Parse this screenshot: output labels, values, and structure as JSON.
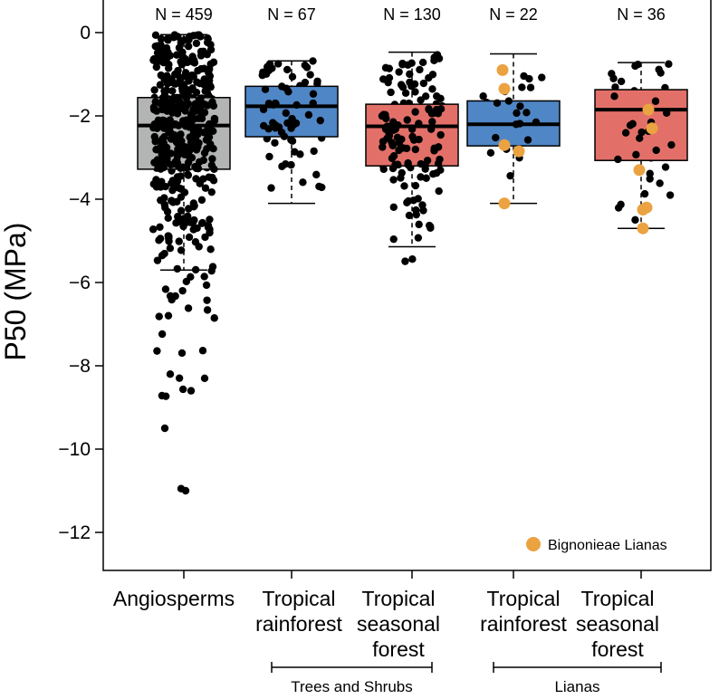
{
  "chart_data": {
    "type": "box",
    "ylabel": "P50 (MPa)",
    "ylim": [
      -12.9,
      0.75
    ],
    "yticks": [
      0,
      -2,
      -4,
      -6,
      -8,
      -10,
      -12
    ],
    "yticklabels": [
      "0",
      "−2",
      "−4",
      "−6",
      "−8",
      "−10",
      "−12"
    ],
    "boxes": [
      {
        "label_lines": [
          "Angiosperms"
        ],
        "n_label": "N = 459",
        "color": "#b3b5b5",
        "q1": -3.28,
        "median": -2.23,
        "q3": -1.56,
        "whisker_low": -5.7,
        "whisker_high": -0.05
      },
      {
        "label_lines": [
          "Tropical",
          "rainforest"
        ],
        "n_label": "N = 67",
        "color": "#4f86c6",
        "q1": -2.5,
        "median": -1.77,
        "q3": -1.29,
        "whisker_low": -4.1,
        "whisker_high": -0.68
      },
      {
        "label_lines": [
          "Tropical",
          "seasonal",
          "forest"
        ],
        "n_label": "N = 130",
        "color": "#e27069",
        "q1": -3.2,
        "median": -2.25,
        "q3": -1.72,
        "whisker_low": -5.14,
        "whisker_high": -0.47
      },
      {
        "label_lines": [
          "Tropical",
          "rainforest"
        ],
        "n_label": "N = 22",
        "color": "#4f86c6",
        "q1": -2.72,
        "median": -2.2,
        "q3": -1.64,
        "whisker_low": -4.1,
        "whisker_high": -0.51
      },
      {
        "label_lines": [
          "Tropical",
          "seasonal",
          "forest"
        ],
        "n_label": "N = 36",
        "color": "#e27069",
        "q1": -3.07,
        "median": -1.85,
        "q3": -1.37,
        "whisker_low": -4.7,
        "whisker_high": -0.72
      }
    ],
    "groups": [
      {
        "label": "Trees and Shrubs",
        "from": 1,
        "to": 2
      },
      {
        "label": "Lianas",
        "from": 3,
        "to": 4
      }
    ],
    "highlight_series": {
      "name": "Bignonieae Lianas",
      "color": "#eba240",
      "points": [
        {
          "box": 3,
          "value": -0.9
        },
        {
          "box": 3,
          "value": -1.35
        },
        {
          "box": 3,
          "value": -2.7
        },
        {
          "box": 3,
          "value": -2.85
        },
        {
          "box": 3,
          "value": -4.1
        },
        {
          "box": 4,
          "value": -1.85
        },
        {
          "box": 4,
          "value": -2.3
        },
        {
          "box": 4,
          "value": -3.3
        },
        {
          "box": 4,
          "value": -4.2
        },
        {
          "box": 4,
          "value": -4.25
        },
        {
          "box": 4,
          "value": -4.7
        }
      ]
    },
    "legend_position": "bottom-right",
    "grid": false
  }
}
